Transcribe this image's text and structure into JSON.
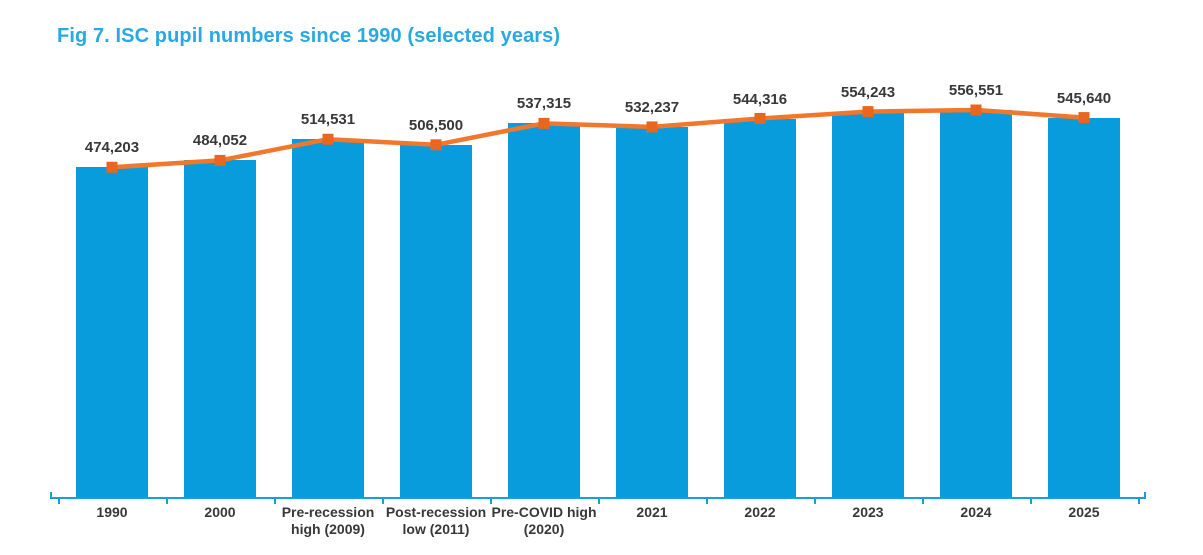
{
  "chart_data": {
    "type": "bar",
    "title": "Fig 7. ISC pupil numbers since 1990 (selected years)",
    "categories": [
      "1990",
      "2000",
      "Pre-recession\nhigh (2009)",
      "Post-recession\nlow (2011)",
      "Pre-COVID high\n(2020)",
      "2021",
      "2022",
      "2023",
      "2024",
      "2025"
    ],
    "series": [
      {
        "name": "ISC pupil numbers (bars)",
        "type": "bar",
        "values": [
          474203,
          484052,
          514531,
          506500,
          537315,
          532237,
          544316,
          554243,
          556551,
          545640
        ]
      },
      {
        "name": "ISC pupil numbers (line overlay)",
        "type": "line",
        "values": [
          474203,
          484052,
          514531,
          506500,
          537315,
          532237,
          544316,
          554243,
          556551,
          545640
        ]
      }
    ],
    "data_labels": [
      "474,203",
      "484,052",
      "514,531",
      "506,500",
      "537,315",
      "532,237",
      "544,316",
      "554,243",
      "556,551",
      "545,640"
    ],
    "ylabel": "",
    "xlabel": "",
    "ylim": [
      0,
      592000
    ],
    "y_axis_visible": false,
    "grid": false,
    "legend_position": "none",
    "colors": {
      "bar": "#089CDC",
      "line": "#F0772B",
      "marker": "#E8661F",
      "title": "#29A9E1",
      "axis": "#1B9DD9",
      "label_text": "#383838"
    }
  }
}
